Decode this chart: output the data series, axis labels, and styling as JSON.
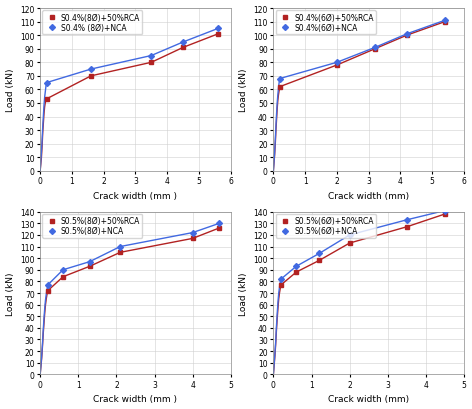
{
  "subplots": [
    {
      "legend1": "S0.4%(8Ø)+50%RCA",
      "legend2": "S0.4% (8Ø)+NCA",
      "xlabel": "Crack width (mm )",
      "ylabel": "Load (kN)",
      "xlim": [
        0,
        6
      ],
      "ylim": [
        0,
        120
      ],
      "yticks": [
        0,
        10,
        20,
        30,
        40,
        50,
        60,
        70,
        80,
        90,
        100,
        110,
        120
      ],
      "xticks": [
        0,
        1,
        2,
        3,
        4,
        5,
        6
      ],
      "series1_x": [
        0,
        0.02,
        0.04,
        0.06,
        0.08,
        0.1,
        0.12,
        0.14,
        0.16,
        0.18,
        0.2,
        1.6,
        3.5,
        4.5,
        5.6
      ],
      "series1_y": [
        0,
        5,
        10,
        18,
        28,
        35,
        42,
        47,
        50,
        52,
        53,
        70,
        80,
        91,
        101
      ],
      "series2_x": [
        0,
        0.02,
        0.04,
        0.06,
        0.08,
        0.1,
        0.12,
        0.14,
        0.16,
        0.18,
        0.2,
        1.6,
        3.5,
        4.5,
        5.6
      ],
      "series2_y": [
        0,
        7,
        14,
        22,
        32,
        40,
        48,
        54,
        58,
        62,
        65,
        75,
        85,
        95,
        105
      ],
      "color1": "#b22222",
      "color2": "#4169e1"
    },
    {
      "legend1": "S0.4%(6Ø)+50%RCA",
      "legend2": "S0.4%(6Ø)+NCA",
      "xlabel": "Crack width (mm)",
      "ylabel": "Load (kN)",
      "xlim": [
        0,
        6
      ],
      "ylim": [
        0,
        120
      ],
      "yticks": [
        0,
        10,
        20,
        30,
        40,
        50,
        60,
        70,
        80,
        90,
        100,
        110,
        120
      ],
      "xticks": [
        0,
        1,
        2,
        3,
        4,
        5,
        6
      ],
      "series1_x": [
        0,
        0.02,
        0.04,
        0.06,
        0.08,
        0.1,
        0.12,
        0.14,
        0.16,
        0.18,
        0.2,
        2.0,
        3.2,
        4.2,
        5.4
      ],
      "series1_y": [
        0,
        6,
        12,
        20,
        30,
        38,
        46,
        52,
        56,
        59,
        62,
        78,
        90,
        100,
        110
      ],
      "series2_x": [
        0,
        0.02,
        0.04,
        0.06,
        0.08,
        0.1,
        0.12,
        0.14,
        0.16,
        0.18,
        0.2,
        2.0,
        3.2,
        4.2,
        5.4
      ],
      "series2_y": [
        0,
        7,
        14,
        23,
        33,
        42,
        50,
        56,
        61,
        65,
        68,
        80,
        91,
        101,
        111
      ],
      "color1": "#b22222",
      "color2": "#4169e1"
    },
    {
      "legend1": "S0.5%(8Ø)+50%RCA",
      "legend2": "S0.5%(8Ø)+NCA",
      "xlabel": "Crack width (mm )",
      "ylabel": "Load (kN)",
      "xlim": [
        0,
        5
      ],
      "ylim": [
        0,
        140
      ],
      "yticks": [
        0,
        10,
        20,
        30,
        40,
        50,
        60,
        70,
        80,
        90,
        100,
        110,
        120,
        130,
        140
      ],
      "xticks": [
        0,
        1,
        2,
        3,
        4,
        5
      ],
      "series1_x": [
        0,
        0.02,
        0.04,
        0.06,
        0.08,
        0.1,
        0.12,
        0.14,
        0.16,
        0.18,
        0.2,
        0.6,
        1.3,
        2.1,
        4.0,
        4.7
      ],
      "series1_y": [
        0,
        7,
        14,
        24,
        35,
        44,
        53,
        60,
        65,
        69,
        72,
        84,
        93,
        105,
        117,
        126
      ],
      "series2_x": [
        0,
        0.02,
        0.04,
        0.06,
        0.08,
        0.1,
        0.12,
        0.14,
        0.16,
        0.18,
        0.2,
        0.6,
        1.3,
        2.1,
        4.0,
        4.7
      ],
      "series2_y": [
        0,
        8,
        16,
        26,
        38,
        48,
        57,
        64,
        69,
        73,
        77,
        90,
        97,
        110,
        122,
        130
      ],
      "color1": "#b22222",
      "color2": "#4169e1"
    },
    {
      "legend1": "S0.5%(6Ø)+50%RCA",
      "legend2": "S0.5%(6Ø)+NCA",
      "xlabel": "Crack width (mm)",
      "ylabel": "Load (kN)",
      "xlim": [
        0,
        5
      ],
      "ylim": [
        0,
        140
      ],
      "yticks": [
        0,
        10,
        20,
        30,
        40,
        50,
        60,
        70,
        80,
        90,
        100,
        110,
        120,
        130,
        140
      ],
      "xticks": [
        0,
        1,
        2,
        3,
        4,
        5
      ],
      "series1_x": [
        0,
        0.02,
        0.04,
        0.06,
        0.08,
        0.1,
        0.12,
        0.14,
        0.16,
        0.18,
        0.2,
        0.6,
        1.2,
        2.0,
        3.5,
        4.5
      ],
      "series1_y": [
        0,
        8,
        16,
        26,
        38,
        48,
        57,
        65,
        70,
        74,
        77,
        88,
        98,
        113,
        127,
        138
      ],
      "series2_x": [
        0,
        0.02,
        0.04,
        0.06,
        0.08,
        0.1,
        0.12,
        0.14,
        0.16,
        0.18,
        0.2,
        0.6,
        1.2,
        2.0,
        3.5,
        4.5
      ],
      "series2_y": [
        0,
        9,
        18,
        28,
        41,
        52,
        62,
        70,
        75,
        79,
        82,
        93,
        104,
        120,
        133,
        141
      ],
      "color1": "#b22222",
      "color2": "#4169e1"
    }
  ],
  "fig_bg": "#ffffff",
  "marker1": "s",
  "marker2": "D",
  "markersize": 3,
  "linewidth": 1.0,
  "fontsize_label": 6.5,
  "fontsize_legend": 5.5,
  "fontsize_tick": 5.5
}
